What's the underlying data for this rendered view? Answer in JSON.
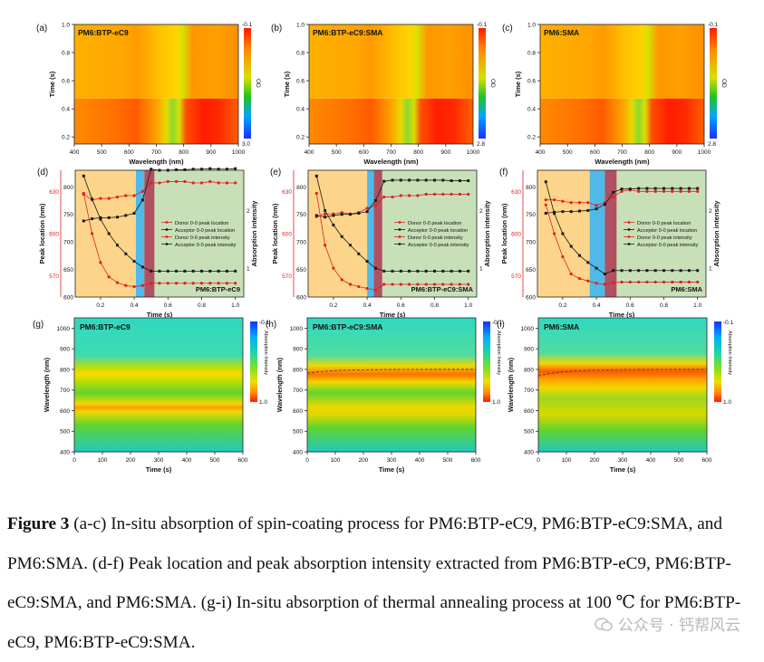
{
  "figure": {
    "heatmaps": [
      {
        "label": "(a)",
        "title": "PM6:BTP-eC9",
        "cbar_top": "-0.1",
        "cbar_bottom": "3.0",
        "cbar_name": "OD"
      },
      {
        "label": "(b)",
        "title": "PM6:BTP-eC9:SMA",
        "cbar_top": "-0.1",
        "cbar_bottom": "2.8",
        "cbar_name": "OD"
      },
      {
        "label": "(c)",
        "title": "PM6:SMA",
        "cbar_top": "-0.1",
        "cbar_bottom": "2.8",
        "cbar_name": "OD"
      }
    ],
    "heatmap_axes": {
      "xlabel": "Wavelength (nm)",
      "ylabel": "Time (s)",
      "xticks": [
        "400",
        "500",
        "600",
        "700",
        "800",
        "900",
        "1000"
      ],
      "yticks": [
        "1.0",
        "0.8",
        "0.6",
        "0.4",
        "0.2"
      ]
    },
    "line_panels": [
      {
        "label": "(d)",
        "name": "PM6:BTP-eC9"
      },
      {
        "label": "(e)",
        "name": "PM6:BTP-eC9:SMA"
      },
      {
        "label": "(f)",
        "name": "PM6:SMA"
      }
    ],
    "line_axes": {
      "xlabel": "Time (s)",
      "ylabel_left": "Peak location (nm)",
      "ylabel_right": "Absorption intensity",
      "xticks": [
        "0.2",
        "0.4",
        "0.6",
        "0.8",
        "1.0"
      ],
      "left_red_ticks": [
        "630",
        "600",
        "570"
      ],
      "left_black_ticks": [
        "800",
        "750",
        "700",
        "650",
        "600"
      ],
      "right_ticks": [
        "2",
        "1"
      ]
    },
    "legend": [
      "Donor 0-0 peak location",
      "Acceptor 0-0 peak location",
      "Donor 0-0 peak intensity",
      "Acceptor 0-0 peak intensity"
    ],
    "anneal_panels": [
      {
        "label": "(g)",
        "title": "PM6:BTP-eC9"
      },
      {
        "label": "(h)",
        "title": "PM6:BTP-eC9:SMA"
      },
      {
        "label": "(i)",
        "title": "PM6:SMA"
      }
    ],
    "anneal_axes": {
      "xlabel": "Time (s)",
      "ylabel": "Wavelength (nm)",
      "xticks": [
        "0",
        "100",
        "200",
        "300",
        "400",
        "500",
        "600"
      ],
      "yticks": [
        "1000",
        "900",
        "800",
        "700",
        "600",
        "500",
        "400"
      ],
      "cbar_top": "-0.1",
      "cbar_bottom": "1.0",
      "cbar_name": "Absorption Intensity"
    }
  },
  "chart_data": [
    {
      "type": "heatmap",
      "title": "PM6:BTP-eC9",
      "xlabel": "Wavelength (nm)",
      "ylabel": "Time (s)",
      "xlim": [
        400,
        1000
      ],
      "ylim": [
        0.15,
        1.0
      ],
      "colorbar": "OD",
      "zlim": [
        -0.1,
        3.0
      ]
    },
    {
      "type": "heatmap",
      "title": "PM6:BTP-eC9:SMA",
      "xlabel": "Wavelength (nm)",
      "ylabel": "Time (s)",
      "xlim": [
        400,
        1000
      ],
      "ylim": [
        0.15,
        1.0
      ],
      "colorbar": "OD",
      "zlim": [
        -0.1,
        2.8
      ]
    },
    {
      "type": "heatmap",
      "title": "PM6:SMA",
      "xlabel": "Wavelength (nm)",
      "ylabel": "Time (s)",
      "xlim": [
        400,
        1000
      ],
      "ylim": [
        0.15,
        1.0
      ],
      "colorbar": "OD",
      "zlim": [
        -0.1,
        2.8
      ]
    },
    {
      "type": "line",
      "title": "PM6:BTP-eC9",
      "xlabel": "Time (s)",
      "ylabel": "Peak location (nm)",
      "y2label": "Absorption intensity",
      "x": [
        0.1,
        0.15,
        0.2,
        0.25,
        0.3,
        0.35,
        0.4,
        0.45,
        0.5,
        0.55,
        0.6,
        0.65,
        0.7,
        0.75,
        0.8,
        0.85,
        0.9,
        0.95,
        1.0
      ],
      "series": [
        {
          "name": "Donor 0-0 peak location",
          "color": "#e02020",
          "values": [
            628,
            624,
            625,
            625,
            626,
            627,
            627,
            630,
            636,
            636,
            637,
            637,
            637,
            636,
            636,
            637,
            636,
            636,
            636
          ]
        },
        {
          "name": "Acceptor 0-0 peak location",
          "color": "#1a1a1a",
          "values": [
            738,
            742,
            744,
            744,
            745,
            748,
            752,
            776,
            832,
            830,
            830,
            831,
            831,
            832,
            832,
            833,
            832,
            832,
            833
          ]
        },
        {
          "name": "Donor 0-0 peak intensity",
          "color": "#e02020",
          "values": [
            2.3,
            1.6,
            1.1,
            0.85,
            0.75,
            0.7,
            0.68,
            0.7,
            0.74,
            0.74,
            0.74,
            0.74,
            0.74,
            0.74,
            0.74,
            0.74,
            0.74,
            0.74,
            0.74
          ]
        },
        {
          "name": "Acceptor 0-0 peak intensity",
          "color": "#1a1a1a",
          "values": [
            2.6,
            2.2,
            1.85,
            1.6,
            1.4,
            1.25,
            1.12,
            1.02,
            0.95,
            0.95,
            0.95,
            0.95,
            0.95,
            0.95,
            0.95,
            0.95,
            0.95,
            0.95,
            0.95
          ]
        }
      ],
      "xlim": [
        0.05,
        1.05
      ],
      "ylim_red": [
        555,
        645
      ],
      "ylim_black": [
        600,
        830
      ],
      "y2lim": [
        0.5,
        2.7
      ]
    },
    {
      "type": "line",
      "title": "PM6:BTP-eC9:SMA",
      "xlabel": "Time (s)",
      "ylabel": "Peak location (nm)",
      "y2label": "Absorption intensity",
      "x": [
        0.1,
        0.15,
        0.2,
        0.25,
        0.3,
        0.35,
        0.4,
        0.45,
        0.5,
        0.55,
        0.6,
        0.65,
        0.7,
        0.75,
        0.8,
        0.85,
        0.9,
        0.95,
        1.0
      ],
      "series": [
        {
          "name": "Donor 0-0 peak location",
          "color": "#e02020",
          "values": [
            612,
            614,
            614,
            615,
            614,
            615,
            618,
            620,
            626,
            626,
            627,
            627,
            627,
            628,
            628,
            628,
            628,
            628,
            628
          ]
        },
        {
          "name": "Acceptor 0-0 peak location",
          "color": "#1a1a1a",
          "values": [
            748,
            745,
            748,
            750,
            750,
            752,
            755,
            775,
            810,
            812,
            812,
            812,
            812,
            812,
            812,
            812,
            811,
            811,
            811
          ]
        },
        {
          "name": "Donor 0-0 peak intensity",
          "color": "#e02020",
          "values": [
            2.3,
            1.4,
            1.0,
            0.8,
            0.72,
            0.68,
            0.65,
            0.62,
            0.72,
            0.72,
            0.72,
            0.72,
            0.72,
            0.72,
            0.72,
            0.72,
            0.72,
            0.72,
            0.72
          ]
        },
        {
          "name": "Acceptor 0-0 peak intensity",
          "color": "#1a1a1a",
          "values": [
            2.6,
            2.0,
            1.75,
            1.55,
            1.4,
            1.25,
            1.12,
            1.0,
            0.95,
            0.95,
            0.95,
            0.95,
            0.95,
            0.95,
            0.95,
            0.95,
            0.95,
            0.95,
            0.95
          ]
        }
      ],
      "xlim": [
        0.05,
        1.05
      ],
      "ylim_red": [
        555,
        645
      ],
      "ylim_black": [
        600,
        830
      ],
      "y2lim": [
        0.5,
        2.7
      ]
    },
    {
      "type": "line",
      "title": "PM6:SMA",
      "xlabel": "Time (s)",
      "ylabel": "Peak location (nm)",
      "y2label": "Absorption intensity",
      "x": [
        0.1,
        0.15,
        0.2,
        0.25,
        0.3,
        0.35,
        0.4,
        0.45,
        0.5,
        0.55,
        0.6,
        0.65,
        0.7,
        0.75,
        0.8,
        0.85,
        0.9,
        0.95,
        1.0
      ],
      "series": [
        {
          "name": "Donor 0-0 peak location",
          "color": "#e02020",
          "values": [
            624,
            624,
            623,
            622,
            622,
            622,
            620,
            622,
            626,
            630,
            631,
            630,
            630,
            630,
            630,
            630,
            630,
            630,
            630
          ]
        },
        {
          "name": "Acceptor 0-0 peak location",
          "color": "#1a1a1a",
          "values": [
            752,
            754,
            755,
            755,
            756,
            757,
            760,
            768,
            790,
            796,
            796,
            797,
            797,
            797,
            797,
            797,
            797,
            797,
            797
          ]
        },
        {
          "name": "Donor 0-0 peak intensity",
          "color": "#e02020",
          "values": [
            2.1,
            1.6,
            1.2,
            0.9,
            0.82,
            0.78,
            0.74,
            0.72,
            0.75,
            0.76,
            0.76,
            0.76,
            0.76,
            0.76,
            0.76,
            0.76,
            0.76,
            0.76,
            0.76
          ]
        },
        {
          "name": "Acceptor 0-0 peak intensity",
          "color": "#1a1a1a",
          "values": [
            2.5,
            1.95,
            1.6,
            1.38,
            1.22,
            1.1,
            1.0,
            0.9,
            0.96,
            0.96,
            0.96,
            0.96,
            0.96,
            0.96,
            0.96,
            0.96,
            0.96,
            0.96,
            0.96
          ]
        }
      ],
      "xlim": [
        0.05,
        1.05
      ],
      "ylim_red": [
        555,
        645
      ],
      "ylim_black": [
        600,
        830
      ],
      "y2lim": [
        0.5,
        2.7
      ]
    },
    {
      "type": "heatmap",
      "title": "PM6:BTP-eC9",
      "xlabel": "Time (s)",
      "ylabel": "Wavelength (nm)",
      "xlim": [
        0,
        600
      ],
      "ylim": [
        400,
        1050
      ],
      "colorbar": "Absorption Intensity",
      "zlim": [
        -0.1,
        1.0
      ]
    },
    {
      "type": "heatmap",
      "title": "PM6:BTP-eC9:SMA",
      "xlabel": "Time (s)",
      "ylabel": "Wavelength (nm)",
      "xlim": [
        0,
        600
      ],
      "ylim": [
        400,
        1050
      ],
      "colorbar": "Absorption Intensity",
      "zlim": [
        -0.1,
        1.0
      ]
    },
    {
      "type": "heatmap",
      "title": "PM6:SMA",
      "xlabel": "Time (s)",
      "ylabel": "Wavelength (nm)",
      "xlim": [
        0,
        600
      ],
      "ylim": [
        400,
        1050
      ],
      "colorbar": "Absorption Intensity",
      "zlim": [
        -0.1,
        1.0
      ]
    }
  ],
  "caption": {
    "label": "Figure 3",
    "text": " (a-c) In-situ absorption of spin-coating process for PM6:BTP-eC9, PM6:BTP-eC9:SMA, and PM6:SMA. (d-f) Peak location and peak absorption intensity extracted from PM6:BTP-eC9, PM6:BTP-eC9:SMA, and PM6:SMA. (g-i) In-situ absorption of thermal annealing process at 100 ℃ for PM6:BTP-eC9, PM6:BTP-eC9:SMA."
  },
  "watermark": "公众号 · 钙帮风云"
}
